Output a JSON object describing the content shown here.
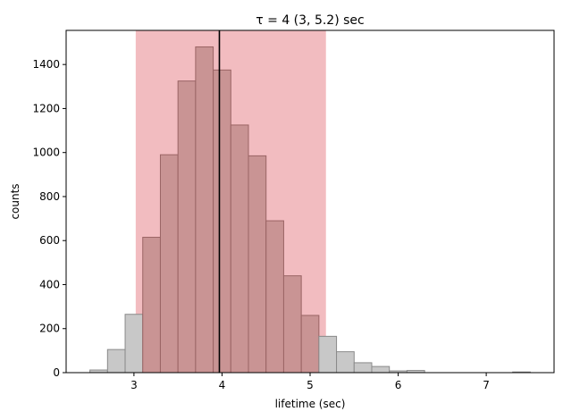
{
  "chart_data": {
    "type": "bar",
    "title": "τ = 4 (3, 5.2) sec",
    "xlabel": "lifetime (sec)",
    "ylabel": "counts",
    "xlim": [
      2.23,
      7.77
    ],
    "ylim": [
      0,
      1555
    ],
    "xticks": [
      3,
      4,
      5,
      6,
      7
    ],
    "yticks": [
      0,
      200,
      400,
      600,
      800,
      1000,
      1200,
      1400
    ],
    "bin_width": 0.2,
    "bins": [
      {
        "x0": 2.5,
        "count": 12
      },
      {
        "x0": 2.7,
        "count": 105
      },
      {
        "x0": 2.9,
        "count": 265
      },
      {
        "x0": 3.1,
        "count": 615
      },
      {
        "x0": 3.3,
        "count": 990
      },
      {
        "x0": 3.5,
        "count": 1325
      },
      {
        "x0": 3.7,
        "count": 1480
      },
      {
        "x0": 3.9,
        "count": 1375
      },
      {
        "x0": 4.1,
        "count": 1125
      },
      {
        "x0": 4.3,
        "count": 985
      },
      {
        "x0": 4.5,
        "count": 690
      },
      {
        "x0": 4.7,
        "count": 440
      },
      {
        "x0": 4.9,
        "count": 260
      },
      {
        "x0": 5.1,
        "count": 165
      },
      {
        "x0": 5.3,
        "count": 95
      },
      {
        "x0": 5.5,
        "count": 45
      },
      {
        "x0": 5.7,
        "count": 28
      },
      {
        "x0": 5.9,
        "count": 8
      },
      {
        "x0": 6.1,
        "count": 10
      },
      {
        "x0": 6.3,
        "count": 0
      },
      {
        "x0": 6.5,
        "count": 0
      },
      {
        "x0": 6.7,
        "count": 0
      },
      {
        "x0": 6.9,
        "count": 0
      },
      {
        "x0": 7.1,
        "count": 0
      },
      {
        "x0": 7.3,
        "count": 3
      }
    ],
    "median": 3.97,
    "interval": [
      3.02,
      5.18
    ],
    "colors": {
      "interval_band": "#f2bcc0",
      "bar_outside": "#c8c8c8",
      "bar_outside_edge": "#8a8a8a",
      "bar_inside": "#c99494",
      "bar_inside_edge": "#9a6464",
      "median_line": "#000000"
    }
  }
}
